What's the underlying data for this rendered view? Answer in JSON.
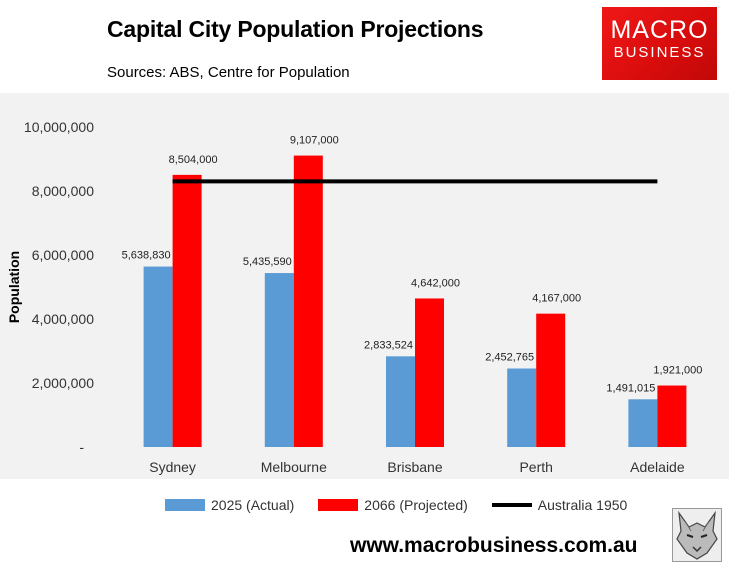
{
  "header": {
    "title": "Capital City Population Projections",
    "subtitle": "Sources: ABS, Centre for Population"
  },
  "logo": {
    "line1": "MACRO",
    "line2": "BUSINESS",
    "color": "#e01010"
  },
  "footer": {
    "url": "www.macrobusiness.com.au"
  },
  "colors": {
    "actual": "#5b9bd5",
    "projected": "#ff0000",
    "reference": "#000000",
    "plot_bg": "#f2f2f2"
  },
  "chart_data": {
    "type": "bar",
    "ylabel": "Population",
    "ylim": [
      0,
      10000000
    ],
    "yticks": [
      {
        "value": 0,
        "label": "-"
      },
      {
        "value": 2000000,
        "label": "2,000,000"
      },
      {
        "value": 4000000,
        "label": "4,000,000"
      },
      {
        "value": 6000000,
        "label": "6,000,000"
      },
      {
        "value": 8000000,
        "label": "8,000,000"
      },
      {
        "value": 10000000,
        "label": "10,000,000"
      }
    ],
    "categories": [
      "Sydney",
      "Melbourne",
      "Brisbane",
      "Perth",
      "Adelaide"
    ],
    "series": [
      {
        "name": "2025 (Actual)",
        "values": [
          5638830,
          5435590,
          2833524,
          2452765,
          1491015
        ],
        "labels": [
          "5,638,830",
          "5,435,590",
          "2,833,524",
          "2,452,765",
          "1,491,015"
        ]
      },
      {
        "name": "2066 (Projected)",
        "values": [
          8504000,
          9107000,
          4642000,
          4167000,
          1921000
        ],
        "labels": [
          "8,504,000",
          "9,107,000",
          "4,642,000",
          "4,167,000",
          "1,921,000"
        ]
      }
    ],
    "reference_line": {
      "name": "Australia 1950",
      "value": 8300000
    },
    "legend": "bottom",
    "grid": false
  }
}
